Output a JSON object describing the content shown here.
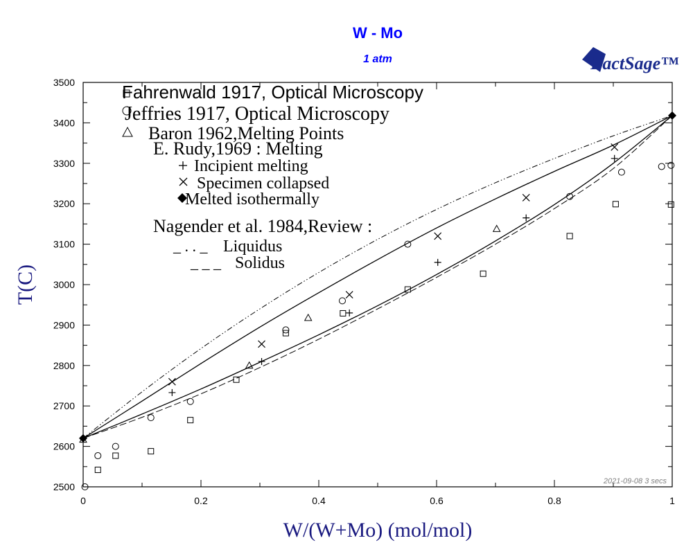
{
  "chart_data": {
    "type": "scatter",
    "title": "W - Mo",
    "subtitle": "1 atm",
    "xlabel": "W/(W+Mo) (mol/mol)",
    "ylabel": "T(C)",
    "xlim": [
      0,
      1
    ],
    "ylim": [
      2500,
      3500
    ],
    "x_ticks": [
      "0",
      "0.2",
      "0.4",
      "0.6",
      "0.8",
      "1"
    ],
    "y_ticks": [
      "2500",
      "2600",
      "2700",
      "2800",
      "2900",
      "3000",
      "3100",
      "3200",
      "3300",
      "3400",
      "3500"
    ],
    "logo_text": "FactSage™",
    "timestamp": "2021-09-08  3 secs",
    "legend": {
      "fahrenwald": "Fahrenwald 1917, Optical Microscopy",
      "jeffries": "Jeffries 1917, Optical Microscopy",
      "baron": "Baron 1962,Melting Points",
      "rudy_header": "E. Rudy,1969 : Melting",
      "incipient": "Incipient melting",
      "collapsed": "Specimen collapsed",
      "isothermal": "Melted isothermally",
      "nagender_header": "Nagender et al. 1984,Review :",
      "liquidus_sym": "_ . . _",
      "liquidus": "Liquidus",
      "solidus_sym": "_ _ _",
      "solidus": "Solidus"
    },
    "lines": {
      "calc_liquidus": [
        [
          0,
          2620
        ],
        [
          0.1,
          2712
        ],
        [
          0.2,
          2805
        ],
        [
          0.3,
          2895
        ],
        [
          0.4,
          2980
        ],
        [
          0.5,
          3062
        ],
        [
          0.6,
          3140
        ],
        [
          0.7,
          3212
        ],
        [
          0.8,
          3280
        ],
        [
          0.9,
          3345
        ],
        [
          1,
          3418
        ]
      ],
      "calc_solidus": [
        [
          0,
          2620
        ],
        [
          0.1,
          2680
        ],
        [
          0.2,
          2742
        ],
        [
          0.3,
          2808
        ],
        [
          0.4,
          2876
        ],
        [
          0.5,
          2948
        ],
        [
          0.6,
          3025
        ],
        [
          0.7,
          3108
        ],
        [
          0.8,
          3198
        ],
        [
          0.9,
          3300
        ],
        [
          1,
          3418
        ]
      ],
      "review_liquidus": [
        [
          0,
          2620
        ],
        [
          0.1,
          2735
        ],
        [
          0.2,
          2842
        ],
        [
          0.3,
          2940
        ],
        [
          0.4,
          3030
        ],
        [
          0.5,
          3112
        ],
        [
          0.6,
          3186
        ],
        [
          0.7,
          3252
        ],
        [
          0.8,
          3312
        ],
        [
          0.9,
          3368
        ],
        [
          1,
          3418
        ]
      ],
      "review_solidus": [
        [
          0,
          2620
        ],
        [
          0.1,
          2672
        ],
        [
          0.2,
          2730
        ],
        [
          0.3,
          2795
        ],
        [
          0.4,
          2865
        ],
        [
          0.5,
          2940
        ],
        [
          0.6,
          3018
        ],
        [
          0.7,
          3100
        ],
        [
          0.8,
          3188
        ],
        [
          0.9,
          3287
        ],
        [
          1,
          3418
        ]
      ]
    },
    "series": {
      "squares": [
        [
          0.025,
          2542
        ],
        [
          0.055,
          2577
        ],
        [
          0.115,
          2588
        ],
        [
          0.182,
          2665
        ],
        [
          0.26,
          2765
        ],
        [
          0.344,
          2880
        ],
        [
          0.441,
          2929
        ],
        [
          0.551,
          2988
        ],
        [
          0.679,
          3027
        ],
        [
          0.826,
          3120
        ],
        [
          0.904,
          3199
        ],
        [
          0.998,
          3198
        ]
      ],
      "circles": [
        [
          0.003,
          2500
        ],
        [
          0.025,
          2577
        ],
        [
          0.055,
          2600
        ],
        [
          0.115,
          2671
        ],
        [
          0.182,
          2711
        ],
        [
          0.344,
          2888
        ],
        [
          0.44,
          2960
        ],
        [
          0.551,
          3100
        ],
        [
          0.826,
          3218
        ],
        [
          0.914,
          3278
        ],
        [
          0.982,
          3292
        ],
        [
          0.998,
          3295
        ]
      ],
      "triangles": [
        [
          0.0,
          2617
        ],
        [
          0.282,
          2800
        ],
        [
          0.382,
          2918
        ],
        [
          0.702,
          3138
        ]
      ],
      "plus": [
        [
          0.151,
          2733
        ],
        [
          0.303,
          2810
        ],
        [
          0.452,
          2930
        ],
        [
          0.602,
          3055
        ],
        [
          0.752,
          3165
        ],
        [
          0.902,
          3312
        ]
      ],
      "cross": [
        [
          0.151,
          2760
        ],
        [
          0.303,
          2853
        ],
        [
          0.452,
          2975
        ],
        [
          0.602,
          3120
        ],
        [
          0.752,
          3215
        ],
        [
          0.902,
          3340
        ]
      ],
      "diamonds": [
        [
          0,
          2620
        ],
        [
          1,
          3418
        ]
      ]
    }
  }
}
